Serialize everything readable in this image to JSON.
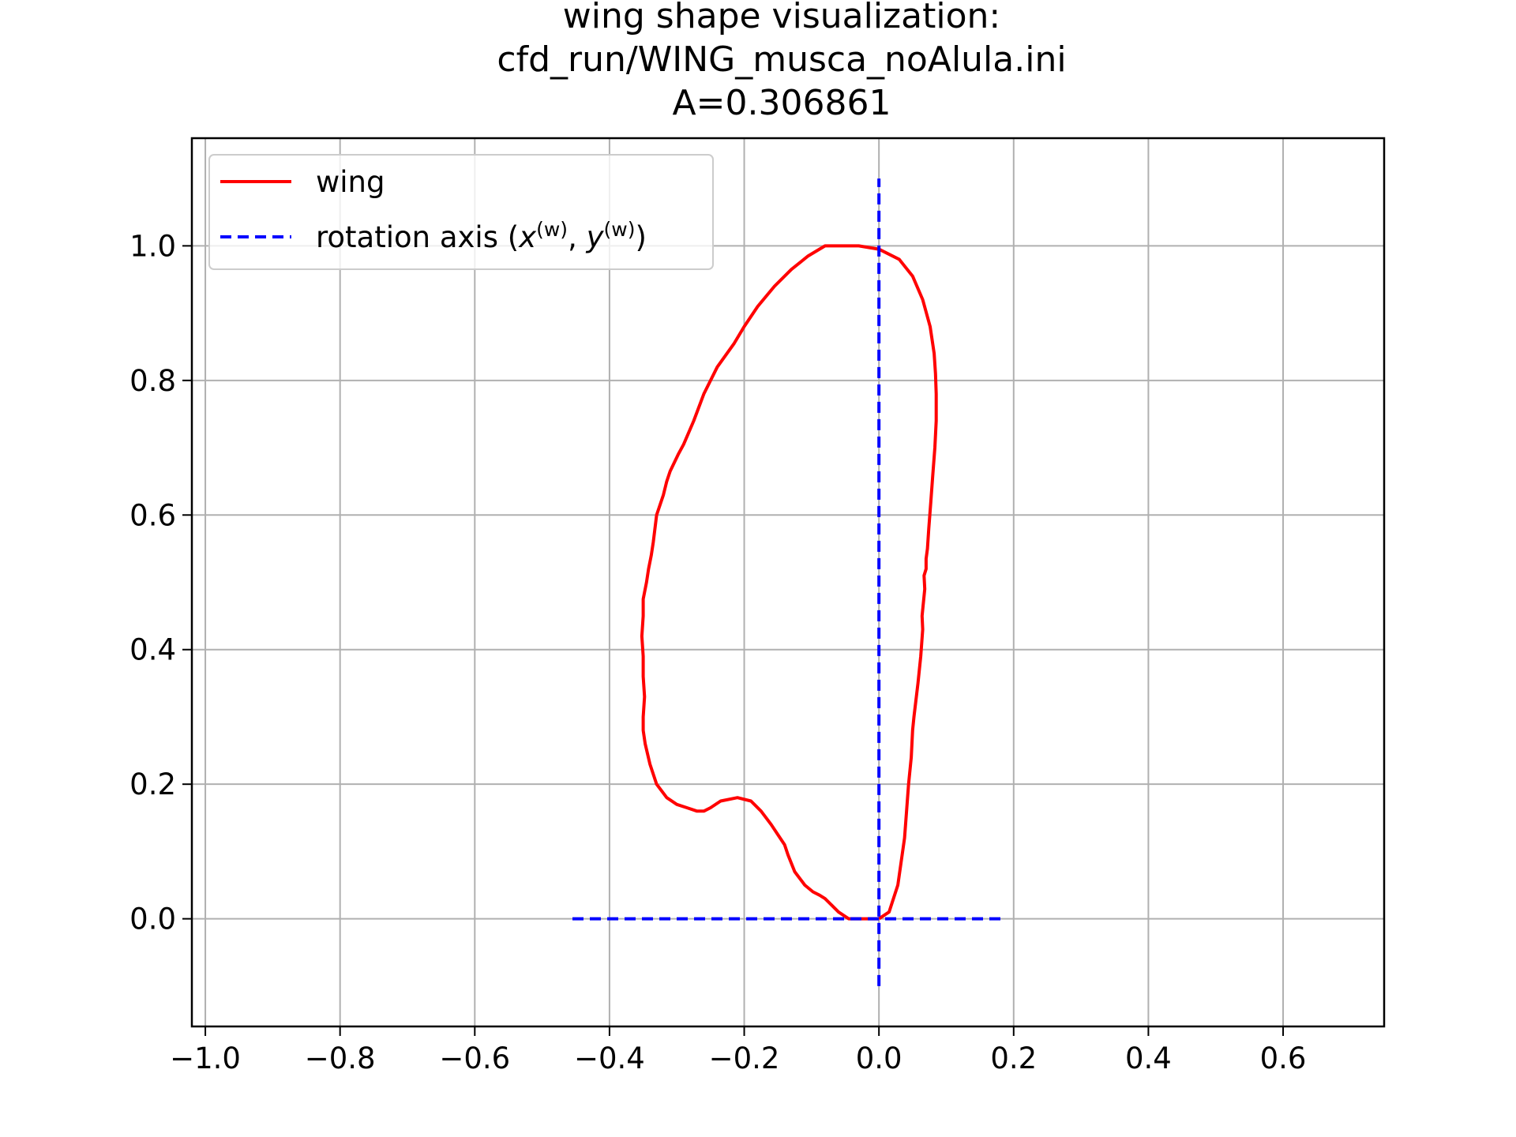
{
  "chart_data": {
    "type": "line",
    "title": [
      "wing shape visualization:",
      "cfd_run/WING_musca_noAlula.ini",
      "A=0.306861"
    ],
    "xlabel": "",
    "ylabel": "",
    "xlim": [
      -1.02,
      0.75
    ],
    "ylim": [
      -0.16,
      1.16
    ],
    "grid": true,
    "legend_position": "top-left",
    "x_ticks": [
      -1.0,
      -0.8,
      -0.6,
      -0.4,
      -0.2,
      0.0,
      0.2,
      0.4,
      0.6
    ],
    "x_tick_labels": [
      "−1.0",
      "−0.8",
      "−0.6",
      "−0.4",
      "−0.2",
      "0.0",
      "0.2",
      "0.4",
      "0.6"
    ],
    "y_ticks": [
      0.0,
      0.2,
      0.4,
      0.6,
      0.8,
      1.0
    ],
    "y_tick_labels": [
      "0.0",
      "0.2",
      "0.4",
      "0.6",
      "0.8",
      "1.0"
    ],
    "series": [
      {
        "name": "wing",
        "color": "#ff0000",
        "style": "solid",
        "x": [
          0.0,
          0.015,
          0.028,
          0.038,
          0.044,
          0.048,
          0.05,
          0.052,
          0.058,
          0.062,
          0.065,
          0.064,
          0.066,
          0.068,
          0.067,
          0.07,
          0.07,
          0.072,
          0.074,
          0.077,
          0.08,
          0.083,
          0.085,
          0.085,
          0.084,
          0.082,
          0.076,
          0.065,
          0.05,
          0.03,
          0.0,
          -0.03,
          -0.055,
          -0.08,
          -0.105,
          -0.13,
          -0.155,
          -0.18,
          -0.2,
          -0.215,
          -0.24,
          -0.26,
          -0.275,
          -0.29,
          -0.298,
          -0.31,
          -0.315,
          -0.32,
          -0.33,
          -0.335,
          -0.338,
          -0.342,
          -0.345,
          -0.35,
          -0.35,
          -0.352,
          -0.35,
          -0.35,
          -0.348,
          -0.35,
          -0.35,
          -0.347,
          -0.34,
          -0.33,
          -0.315,
          -0.3,
          -0.285,
          -0.27,
          -0.26,
          -0.25,
          -0.235,
          -0.21,
          -0.19,
          -0.175,
          -0.16,
          -0.15,
          -0.14,
          -0.135,
          -0.125,
          -0.11,
          -0.098,
          -0.088,
          -0.08,
          -0.07,
          -0.06,
          -0.045,
          -0.03,
          -0.015,
          0.0
        ],
        "y": [
          0.0,
          0.01,
          0.05,
          0.12,
          0.2,
          0.24,
          0.28,
          0.3,
          0.35,
          0.39,
          0.43,
          0.45,
          0.47,
          0.49,
          0.51,
          0.52,
          0.535,
          0.55,
          0.58,
          0.62,
          0.66,
          0.7,
          0.74,
          0.78,
          0.81,
          0.84,
          0.88,
          0.92,
          0.955,
          0.98,
          0.995,
          1.0,
          1.0,
          1.0,
          0.985,
          0.965,
          0.94,
          0.91,
          0.88,
          0.855,
          0.82,
          0.78,
          0.74,
          0.705,
          0.69,
          0.665,
          0.65,
          0.63,
          0.6,
          0.56,
          0.54,
          0.52,
          0.5,
          0.475,
          0.45,
          0.42,
          0.39,
          0.36,
          0.33,
          0.3,
          0.28,
          0.26,
          0.23,
          0.2,
          0.18,
          0.17,
          0.165,
          0.16,
          0.16,
          0.165,
          0.175,
          0.18,
          0.175,
          0.16,
          0.14,
          0.125,
          0.11,
          0.095,
          0.07,
          0.05,
          0.04,
          0.035,
          0.03,
          0.02,
          0.01,
          0.0,
          0.0,
          0.0,
          0.0
        ]
      },
      {
        "name": "rotation axis (x(w), y(w))",
        "legend_label": {
          "prefix": "rotation axis (",
          "x_var": "x",
          "y_var": "y",
          "sup": "(w)",
          "sep": ", ",
          "suffix": ")"
        },
        "color": "#0000ff",
        "style": "dashed",
        "segments": [
          {
            "x": [
              -0.455,
              0.185
            ],
            "y": [
              0.0,
              0.0
            ]
          },
          {
            "x": [
              0.0,
              0.0
            ],
            "y": [
              -0.1,
              1.1
            ]
          }
        ]
      }
    ]
  }
}
